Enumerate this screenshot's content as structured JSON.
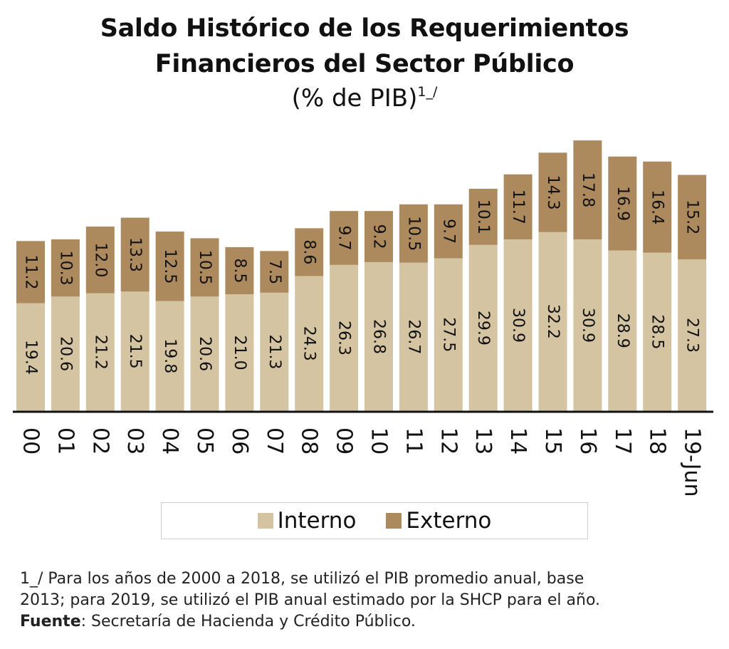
{
  "title": {
    "line1": "Saldo Histórico de los Requerimientos",
    "line2": "Financieros del Sector Público",
    "subtitle": "(% de PIB)",
    "subtitle_note": "1_/"
  },
  "colors": {
    "interno": "#d4c4a1",
    "externo": "#ad8a5e",
    "axis": "#111111"
  },
  "chart_data": {
    "type": "bar",
    "stacked": true,
    "categories": [
      "00",
      "01",
      "02",
      "03",
      "04",
      "05",
      "06",
      "07",
      "08",
      "09",
      "10",
      "11",
      "12",
      "13",
      "14",
      "15",
      "16",
      "17",
      "18",
      "19-Jun"
    ],
    "series": [
      {
        "name": "Interno",
        "values": [
          19.4,
          20.6,
          21.2,
          21.5,
          19.8,
          20.6,
          21.0,
          21.3,
          24.3,
          26.3,
          26.8,
          26.7,
          27.5,
          29.9,
          30.9,
          32.2,
          30.9,
          28.9,
          28.5,
          27.3
        ]
      },
      {
        "name": "Externo",
        "values": [
          11.2,
          10.3,
          12.0,
          13.3,
          12.5,
          10.5,
          8.5,
          7.5,
          8.6,
          9.7,
          9.2,
          10.5,
          9.7,
          10.1,
          11.7,
          14.3,
          17.8,
          16.9,
          16.4,
          15.2
        ]
      }
    ],
    "value_labels": {
      "Interno": [
        "19.4",
        "20.6",
        "21.2",
        "21.5",
        "19.8",
        "20.6",
        "21.0",
        "21.3",
        "24.3",
        "26.3",
        "26.8",
        "26.7",
        "27.5",
        "29.9",
        "30.9",
        "32.2",
        "30.9",
        "28.9",
        "28.5",
        "27.3"
      ],
      "Externo": [
        "11.2",
        "10.3",
        "12.0",
        "13.3",
        "12.5",
        "10.5",
        "8.5",
        "7.5",
        "8.6",
        "9.7",
        "9.2",
        "10.5",
        "9.7",
        "10.1",
        "11.7",
        "14.3",
        "17.8",
        "16.9",
        "16.4",
        "15.2"
      ]
    },
    "ylim": [
      0,
      49
    ],
    "grid": false,
    "legend_position": "bottom"
  },
  "legend": {
    "interno": "Interno",
    "externo": "Externo"
  },
  "footnote": {
    "line1": "1_/ Para los años de 2000 a 2018, se utilizó el PIB promedio anual, base",
    "line2": "2013; para 2019, se utilizó el PIB anual estimado por la SHCP para el año.",
    "source_label": "Fuente",
    "source_text": ": Secretaría de Hacienda y Crédito Público."
  }
}
